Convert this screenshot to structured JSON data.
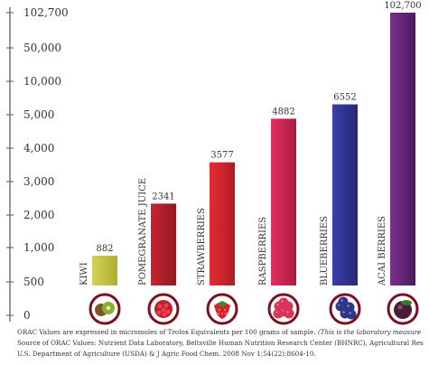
{
  "chart_data": {
    "type": "bar",
    "title": "",
    "xlabel": "",
    "ylabel": "",
    "y_scale": "broken",
    "y_ticks": [
      "0",
      "500",
      "1,000",
      "2,000",
      "3,000",
      "4,000",
      "5,000",
      "10,000",
      "50,000",
      "102,700"
    ],
    "y_tick_values": [
      0,
      500,
      1000,
      2000,
      3000,
      4000,
      5000,
      10000,
      50000,
      102700
    ],
    "categories": [
      "KIWI",
      "POMEGRANATE JUICE",
      "STRAWBERRIES",
      "RASPBERRIES",
      "BLUEBERRIES",
      "ACAI BERRIES"
    ],
    "values": [
      882,
      2341,
      3577,
      4882,
      6552,
      102700
    ],
    "value_labels": [
      "882",
      "2341",
      "3577",
      "4882",
      "6552",
      "102,700"
    ],
    "bar_colors": [
      [
        "#d3d25a",
        "#b0ae2e"
      ],
      [
        "#c9252f",
        "#8e1a22"
      ],
      [
        "#e52b35",
        "#b01c24"
      ],
      [
        "#e33062",
        "#a81a40"
      ],
      [
        "#3a3ea6",
        "#252878"
      ],
      [
        "#7a2f8c",
        "#4a1a5e"
      ]
    ],
    "fruit_icons": [
      "kiwi-icon",
      "pomegranate-icon",
      "strawberry-icon",
      "raspberry-icon",
      "blueberry-icon",
      "acai-berry-icon"
    ],
    "grid": false,
    "legend": "none"
  },
  "footnote": {
    "line1": "ORAC Values are expressed in micromoles of Trolox Equivalents per 100 grams of sample.",
    "line1_italic": "(This is the laboratory measure of ORAC.)",
    "line2": "Source of ORAC Values: Nutrient Data Laboratory, Beltsville Human Nutrition Research Center (BHNRC), Agricultural Research Service (ARS),",
    "line3": "U.S. Department of Agriculture (USDA) & J Agric Food Chem. 2008 Nov 1;54(22):8604-10."
  },
  "colors": {
    "axis": "#555555",
    "ring": "#7a1020",
    "text": "#333333"
  }
}
